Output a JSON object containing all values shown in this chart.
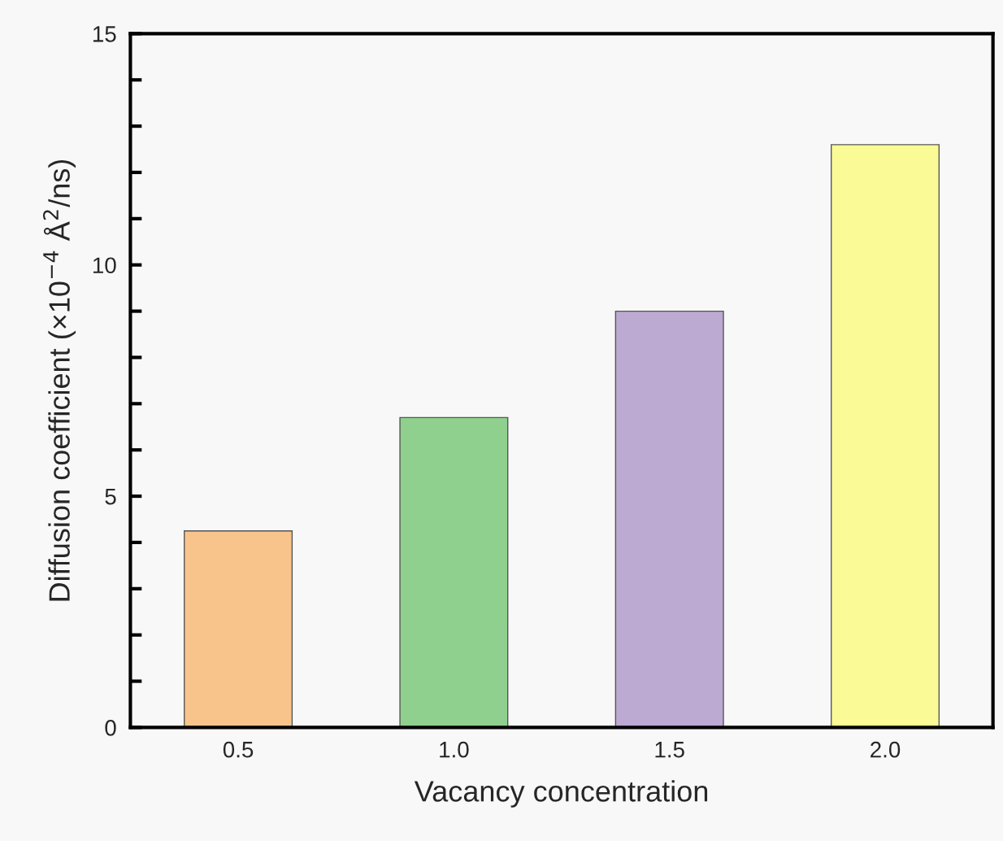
{
  "chart_data": {
    "type": "bar",
    "xlabel": "Vacancy concentration",
    "ylabel": "Diffusion coefficient (×10$^{−4}$ Å$^{2}$/ns)",
    "categories": [
      "0.5",
      "1.0",
      "1.5",
      "2.0"
    ],
    "values": [
      4.25,
      6.7,
      9.0,
      12.6
    ],
    "colors": [
      "#f9c48c",
      "#8fd08e",
      "#bcaad2",
      "#fafa96"
    ],
    "ylim": [
      0,
      15
    ],
    "yticks": [
      0,
      {
        "value": 1,
        "label": null
      },
      {
        "value": 2,
        "label": null
      },
      {
        "value": 3,
        "label": null
      },
      {
        "value": 4,
        "label": null
      },
      5,
      {
        "value": 6,
        "label": null
      },
      {
        "value": 7,
        "label": null
      },
      {
        "value": 8,
        "label": null
      },
      {
        "value": 9,
        "label": null
      },
      10,
      {
        "value": 11,
        "label": null
      },
      {
        "value": 12,
        "label": null
      },
      {
        "value": 13,
        "label": null
      },
      {
        "value": 14,
        "label": null
      },
      15
    ],
    "grid": false,
    "legend": false
  }
}
